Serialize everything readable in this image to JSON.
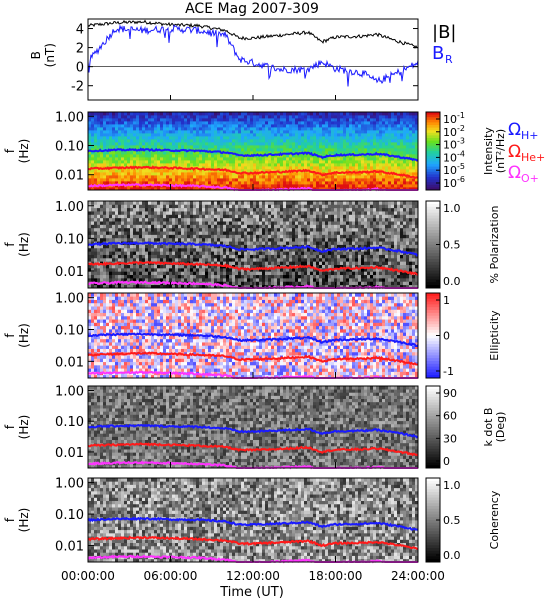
{
  "title": "ACE Mag 2007-309",
  "time_axis": {
    "xlabel": "Time (UT)",
    "ticks": [
      "00:00:00",
      "06:00:00",
      "12:00:00",
      "18:00:00",
      "24:00:00"
    ],
    "tick_hours": [
      0,
      6,
      12,
      18,
      24
    ]
  },
  "freq_axis": {
    "ticks": [
      "1.00",
      "0.10",
      "0.01"
    ],
    "tick_values": [
      1,
      0.1,
      0.01
    ],
    "ylim": [
      0.003,
      1.4
    ],
    "scale": "log",
    "ylabel_top": "f",
    "ylabel_bottom": "(Hz)"
  },
  "legend": {
    "B_abs": "|B|",
    "B_R": "B",
    "B_R_sub": "R",
    "H_sub": "H+",
    "He_sub": "He+",
    "O_sub": "O+",
    "omega": "Ω"
  },
  "colors": {
    "B_abs": "#000000",
    "B_R": "#1a1aff",
    "H": "#1a1aff",
    "He": "#ff1a1a",
    "O": "#ff33ff"
  },
  "panels": [
    {
      "id": "intensity",
      "label_lines": [
        "Intensity",
        "(nT²/Hz)"
      ],
      "colorbar": "rainbow",
      "cb_ticks": [
        [
          "10",
          "-1"
        ],
        [
          "10",
          "-2"
        ],
        [
          "10",
          "-3"
        ],
        [
          "10",
          "-4"
        ],
        [
          "10",
          "-5"
        ],
        [
          "10",
          "-6"
        ]
      ]
    },
    {
      "id": "polarization",
      "label_lines": [
        "% Polarization"
      ],
      "colorbar": "gray",
      "cb_ticks": [
        [
          "1.0",
          ""
        ],
        [
          "0.5",
          ""
        ],
        [
          "0.0",
          ""
        ]
      ]
    },
    {
      "id": "ellipticity",
      "label_lines": [
        "Ellipticity"
      ],
      "colorbar": "bwr",
      "cb_ticks": [
        [
          "1",
          ""
        ],
        [
          "0",
          ""
        ],
        [
          "-1",
          ""
        ]
      ]
    },
    {
      "id": "k-dot-b",
      "label_lines": [
        "k dot B",
        "(Deg)"
      ],
      "colorbar": "gray",
      "cb_ticks": [
        [
          "90",
          ""
        ],
        [
          "60",
          ""
        ],
        [
          "30",
          ""
        ],
        [
          "0",
          ""
        ]
      ]
    },
    {
      "id": "coherency",
      "label_lines": [
        "Coherency"
      ],
      "colorbar": "gray",
      "cb_ticks": [
        [
          "1.0",
          ""
        ],
        [
          "0.5",
          ""
        ],
        [
          "0.0",
          ""
        ]
      ]
    }
  ],
  "chart_data": {
    "type": "line",
    "title": "ACE Mag 2007-309",
    "xlabel": "Time (UT)",
    "xlim": [
      0,
      24
    ],
    "x": [
      0,
      2,
      4,
      6,
      8,
      10,
      11,
      12,
      14,
      16,
      17,
      18,
      20,
      21,
      22,
      24
    ],
    "field_panel": {
      "ylabel": "B (nT)",
      "ylim": [
        -3.5,
        5
      ],
      "yticks": [
        "4",
        "2",
        "0",
        "-2"
      ],
      "ytick_values": [
        4,
        2,
        0,
        -2
      ],
      "series": [
        {
          "name": "|B|",
          "values": [
            4.3,
            4.6,
            4.7,
            4.4,
            4.3,
            3.8,
            3.0,
            3.0,
            3.3,
            3.6,
            2.6,
            3.1,
            3.2,
            3.4,
            2.9,
            2.0
          ]
        },
        {
          "name": "B_R",
          "values": [
            0.5,
            4.0,
            3.8,
            4.0,
            3.8,
            3.3,
            0.8,
            0.4,
            -0.3,
            -0.3,
            0.5,
            -0.2,
            -0.7,
            -1.6,
            -1.0,
            0.4
          ]
        }
      ]
    },
    "cyclotron_frequencies_hz": [
      {
        "name": "ΩH+",
        "values": [
          0.065,
          0.07,
          0.072,
          0.068,
          0.066,
          0.058,
          0.046,
          0.046,
          0.05,
          0.055,
          0.04,
          0.047,
          0.049,
          0.052,
          0.045,
          0.031
        ]
      },
      {
        "name": "ΩHe+",
        "values": [
          0.016,
          0.017,
          0.018,
          0.017,
          0.016,
          0.0145,
          0.0115,
          0.0115,
          0.0125,
          0.014,
          0.01,
          0.0118,
          0.0122,
          0.013,
          0.0112,
          0.0078
        ]
      },
      {
        "name": "ΩO+",
        "values": [
          0.0041,
          0.0044,
          0.0045,
          0.0043,
          0.0041,
          0.0036,
          0.0029,
          0.0029,
          0.0031,
          0.0034,
          0.0025,
          0.0029,
          0.003,
          0.0032,
          0.0028,
          0.002
        ]
      }
    ]
  }
}
